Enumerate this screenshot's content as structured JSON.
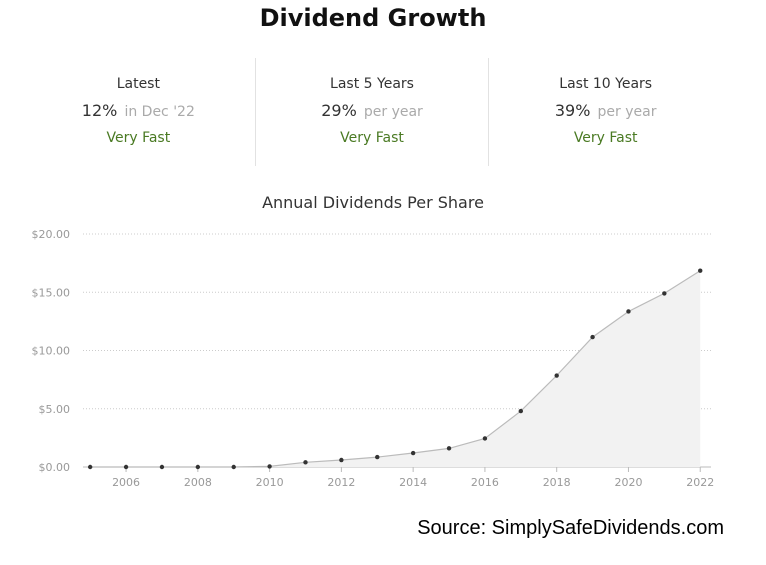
{
  "title": "Dividend Growth",
  "stats": [
    {
      "label": "Latest",
      "value": "12%",
      "suffix": "in Dec '22",
      "rating": "Very Fast"
    },
    {
      "label": "Last 5 Years",
      "value": "29%",
      "suffix": "per year",
      "rating": "Very Fast"
    },
    {
      "label": "Last 10 Years",
      "value": "39%",
      "suffix": "per year",
      "rating": "Very Fast"
    }
  ],
  "source": "Source: SimplySafeDividends.com",
  "colors": {
    "rating": "#4a7a23",
    "line": "#bbbbbb",
    "fill": "#f2f2f2",
    "marker": "#333333",
    "grid": "#cccccc"
  },
  "chart_data": {
    "type": "area",
    "title": "Annual Dividends Per Share",
    "xlabel": "",
    "ylabel": "",
    "x": [
      2005,
      2006,
      2007,
      2008,
      2009,
      2010,
      2011,
      2012,
      2013,
      2014,
      2015,
      2016,
      2017,
      2018,
      2019,
      2020,
      2021,
      2022
    ],
    "values": [
      0,
      0,
      0,
      0,
      0,
      0.05,
      0.4,
      0.6,
      0.85,
      1.2,
      1.6,
      2.45,
      4.8,
      7.85,
      11.15,
      13.35,
      14.9,
      16.85
    ],
    "x_ticks": [
      2006,
      2008,
      2010,
      2012,
      2014,
      2016,
      2018,
      2020,
      2022
    ],
    "x_tick_labels": [
      "2006",
      "2008",
      "2010",
      "2012",
      "2014",
      "2016",
      "2018",
      "2020",
      "2022"
    ],
    "y_ticks": [
      0,
      5,
      10,
      15,
      20
    ],
    "y_tick_labels": [
      "$0.00",
      "$5.00",
      "$10.00",
      "$15.00",
      "$20.00"
    ],
    "ylim": [
      0,
      20
    ],
    "xlim": [
      2004.8,
      2022.3
    ],
    "grid": true,
    "legend": "none"
  }
}
